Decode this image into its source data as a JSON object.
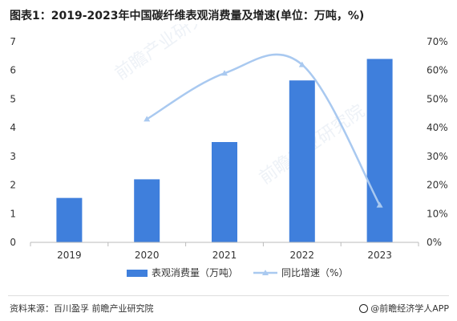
{
  "title": "图表1：2019-2023年中国碳纤维表观消费量及增速(单位：万吨，%)",
  "source": "资料来源：百川盈孚 前瞻产业研究院",
  "brand": "@前瞻经济学人APP",
  "watermark": "前瞻产业研究院",
  "colors": {
    "bar": "#3f7fdc",
    "line": "#a9c9f0",
    "axis": "#bbbbbb",
    "text": "#333333"
  },
  "chart_data": {
    "type": "bar",
    "categories": [
      "2019",
      "2020",
      "2021",
      "2022",
      "2023"
    ],
    "series": [
      {
        "name": "表观消费量（万吨）",
        "type": "bar",
        "axis": "left",
        "values": [
          1.55,
          2.2,
          3.5,
          5.65,
          6.4
        ]
      },
      {
        "name": "同比增速（%）",
        "type": "line",
        "axis": "right",
        "values": [
          null,
          43,
          59,
          62,
          13
        ]
      }
    ],
    "ylim": [
      0,
      7
    ],
    "yticks": [
      "0",
      "1",
      "2",
      "3",
      "4",
      "5",
      "6",
      "7"
    ],
    "y2lim": [
      0,
      70
    ],
    "y2ticks": [
      "0%",
      "10%",
      "20%",
      "30%",
      "40%",
      "50%",
      "60%",
      "70%"
    ],
    "legend_position": "bottom",
    "grid": false
  }
}
